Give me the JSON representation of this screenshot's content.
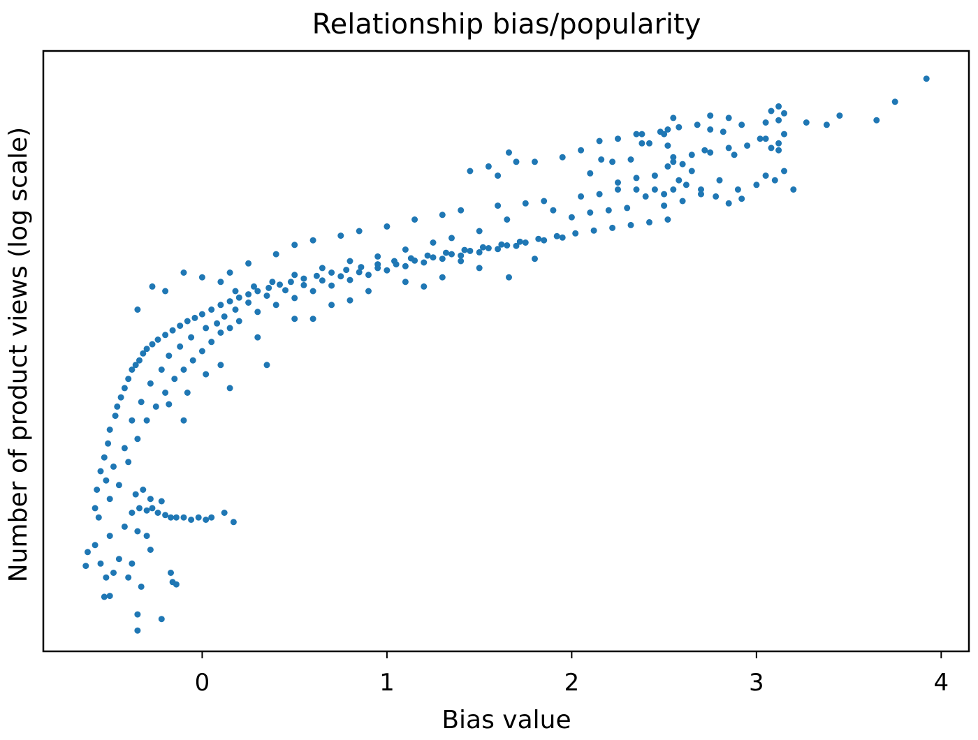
{
  "chart_data": {
    "type": "scatter",
    "title": "Relationship bias/popularity",
    "xlabel": "Bias value",
    "ylabel": "Number of product views (log scale)",
    "xlim": [
      -0.86,
      4.15
    ],
    "ylim": [
      0.0,
      1.0
    ],
    "y_scale": "log",
    "y_ticks_shown": false,
    "x_ticks": [
      {
        "value": 0,
        "label": "0"
      },
      {
        "value": 1,
        "label": "1"
      },
      {
        "value": 2,
        "label": "2"
      },
      {
        "value": 3,
        "label": "3"
      },
      {
        "value": 4,
        "label": "4"
      }
    ],
    "grid": false,
    "legend": "none",
    "marker_color": "#1f77b4",
    "series": [
      {
        "points": [
          [
            -0.62,
            0.215
          ],
          [
            -0.63,
            0.185
          ],
          [
            -0.58,
            0.23
          ],
          [
            -0.55,
            0.19
          ],
          [
            -0.52,
            0.16
          ],
          [
            -0.5,
            0.12
          ],
          [
            -0.53,
            0.118
          ],
          [
            -0.35,
            0.08
          ],
          [
            -0.35,
            0.045
          ],
          [
            -0.22,
            0.07
          ],
          [
            -0.16,
            0.15
          ],
          [
            -0.17,
            0.17
          ],
          [
            -0.14,
            0.145
          ],
          [
            -0.33,
            0.14
          ],
          [
            -0.4,
            0.16
          ],
          [
            -0.48,
            0.17
          ],
          [
            -0.45,
            0.2
          ],
          [
            -0.38,
            0.19
          ],
          [
            -0.28,
            0.22
          ],
          [
            -0.3,
            0.25
          ],
          [
            -0.5,
            0.25
          ],
          [
            -0.56,
            0.29
          ],
          [
            -0.58,
            0.31
          ],
          [
            -0.42,
            0.27
          ],
          [
            -0.35,
            0.26
          ],
          [
            -0.57,
            0.35
          ],
          [
            -0.55,
            0.39
          ],
          [
            -0.53,
            0.42
          ],
          [
            -0.51,
            0.45
          ],
          [
            -0.5,
            0.48
          ],
          [
            -0.47,
            0.51
          ],
          [
            -0.46,
            0.53
          ],
          [
            -0.44,
            0.55
          ],
          [
            -0.42,
            0.57
          ],
          [
            -0.4,
            0.59
          ],
          [
            -0.38,
            0.61
          ],
          [
            -0.36,
            0.62
          ],
          [
            -0.34,
            0.63
          ],
          [
            -0.32,
            0.645
          ],
          [
            -0.3,
            0.655
          ],
          [
            -0.27,
            0.665
          ],
          [
            -0.24,
            0.675
          ],
          [
            -0.2,
            0.685
          ],
          [
            -0.16,
            0.695
          ],
          [
            -0.12,
            0.705
          ],
          [
            -0.08,
            0.715
          ],
          [
            -0.04,
            0.722
          ],
          [
            0.0,
            0.73
          ],
          [
            0.05,
            0.74
          ],
          [
            0.1,
            0.75
          ],
          [
            0.15,
            0.758
          ],
          [
            0.2,
            0.766
          ],
          [
            0.25,
            0.773
          ],
          [
            0.3,
            0.78
          ],
          [
            0.36,
            0.787
          ],
          [
            0.42,
            0.794
          ],
          [
            0.48,
            0.8
          ],
          [
            0.55,
            0.807
          ],
          [
            0.62,
            0.813
          ],
          [
            0.7,
            0.82
          ],
          [
            0.78,
            0.826
          ],
          [
            0.86,
            0.832
          ],
          [
            0.95,
            0.838
          ],
          [
            1.04,
            0.845
          ],
          [
            1.13,
            0.851
          ],
          [
            1.22,
            0.857
          ],
          [
            1.32,
            0.863
          ],
          [
            1.42,
            0.869
          ],
          [
            1.52,
            0.875
          ],
          [
            1.62,
            0.881
          ],
          [
            1.72,
            0.887
          ],
          [
            1.82,
            0.893
          ],
          [
            1.92,
            0.899
          ],
          [
            2.02,
            0.905
          ],
          [
            2.12,
            0.911
          ],
          [
            2.22,
            0.917
          ],
          [
            2.32,
            0.923
          ],
          [
            2.42,
            0.929
          ],
          [
            2.52,
            0.935
          ],
          [
            -0.5,
            0.33
          ],
          [
            -0.45,
            0.36
          ],
          [
            -0.4,
            0.41
          ],
          [
            -0.35,
            0.46
          ],
          [
            -0.3,
            0.5
          ],
          [
            -0.25,
            0.53
          ],
          [
            -0.2,
            0.56
          ],
          [
            -0.15,
            0.59
          ],
          [
            -0.1,
            0.61
          ],
          [
            -0.05,
            0.63
          ],
          [
            0.0,
            0.65
          ],
          [
            0.05,
            0.67
          ],
          [
            0.1,
            0.69
          ],
          [
            0.15,
            0.7
          ],
          [
            0.2,
            0.715
          ],
          [
            0.3,
            0.735
          ],
          [
            0.4,
            0.75
          ],
          [
            0.5,
            0.765
          ],
          [
            0.6,
            0.78
          ],
          [
            0.7,
            0.792
          ],
          [
            0.8,
            0.804
          ],
          [
            0.9,
            0.815
          ],
          [
            1.0,
            0.825
          ],
          [
            1.1,
            0.834
          ],
          [
            1.2,
            0.842
          ],
          [
            1.3,
            0.85
          ],
          [
            1.4,
            0.857
          ],
          [
            1.5,
            0.864
          ],
          [
            1.6,
            0.871
          ],
          [
            1.7,
            0.878
          ],
          [
            -0.48,
            0.4
          ],
          [
            -0.52,
            0.37
          ],
          [
            -0.42,
            0.44
          ],
          [
            -0.38,
            0.5
          ],
          [
            -0.33,
            0.54
          ],
          [
            -0.28,
            0.58
          ],
          [
            -0.22,
            0.61
          ],
          [
            -0.18,
            0.64
          ],
          [
            -0.12,
            0.66
          ],
          [
            -0.06,
            0.68
          ],
          [
            0.02,
            0.7
          ],
          [
            0.08,
            0.71
          ],
          [
            0.12,
            0.725
          ],
          [
            0.18,
            0.74
          ],
          [
            0.25,
            0.755
          ],
          [
            0.35,
            0.77
          ],
          [
            0.45,
            0.782
          ],
          [
            0.55,
            0.793
          ],
          [
            0.65,
            0.803
          ],
          [
            0.75,
            0.812
          ],
          [
            0.85,
            0.821
          ],
          [
            0.95,
            0.83
          ],
          [
            1.05,
            0.838
          ],
          [
            1.15,
            0.846
          ],
          [
            1.25,
            0.853
          ],
          [
            1.35,
            0.86
          ],
          [
            1.45,
            0.867
          ],
          [
            1.55,
            0.873
          ],
          [
            1.65,
            0.879
          ],
          [
            1.75,
            0.885
          ],
          [
            1.85,
            0.89
          ],
          [
            1.95,
            0.896
          ],
          [
            -0.38,
            0.3
          ],
          [
            -0.34,
            0.31
          ],
          [
            -0.3,
            0.305
          ],
          [
            -0.27,
            0.31
          ],
          [
            -0.24,
            0.3
          ],
          [
            -0.2,
            0.295
          ],
          [
            -0.17,
            0.29
          ],
          [
            -0.14,
            0.29
          ],
          [
            -0.1,
            0.29
          ],
          [
            -0.06,
            0.285
          ],
          [
            -0.02,
            0.29
          ],
          [
            0.02,
            0.285
          ],
          [
            0.05,
            0.29
          ],
          [
            0.12,
            0.3
          ],
          [
            0.17,
            0.28
          ],
          [
            -0.28,
            0.33
          ],
          [
            -0.22,
            0.325
          ],
          [
            -0.32,
            0.35
          ],
          [
            -0.36,
            0.34
          ],
          [
            -0.08,
            0.56
          ],
          [
            0.02,
            0.6
          ],
          [
            0.1,
            0.62
          ],
          [
            -0.18,
            0.535
          ],
          [
            0.3,
            0.68
          ],
          [
            0.5,
            0.72
          ],
          [
            0.7,
            0.75
          ],
          [
            0.9,
            0.78
          ],
          [
            1.1,
            0.8
          ],
          [
            1.3,
            0.81
          ],
          [
            1.5,
            0.83
          ],
          [
            0.35,
            0.62
          ],
          [
            0.15,
            0.57
          ],
          [
            -0.1,
            0.5
          ],
          [
            0.6,
            0.72
          ],
          [
            0.8,
            0.76
          ],
          [
            1.2,
            0.79
          ],
          [
            1.8,
            0.85
          ],
          [
            1.4,
            0.845
          ],
          [
            1.66,
            0.81
          ],
          [
            -0.35,
            0.74
          ],
          [
            -0.27,
            0.79
          ],
          [
            -0.1,
            0.82
          ],
          [
            0.1,
            0.8
          ],
          [
            0.15,
            0.82
          ],
          [
            0.0,
            0.81
          ],
          [
            -0.2,
            0.78
          ],
          [
            0.25,
            0.84
          ],
          [
            0.4,
            0.86
          ],
          [
            0.5,
            0.88
          ],
          [
            0.6,
            0.89
          ],
          [
            0.75,
            0.9
          ],
          [
            0.85,
            0.91
          ],
          [
            1.0,
            0.92
          ],
          [
            1.15,
            0.935
          ],
          [
            1.3,
            0.945
          ],
          [
            1.4,
            0.955
          ],
          [
            1.6,
            0.965
          ],
          [
            1.75,
            0.97
          ],
          [
            1.85,
            0.975
          ],
          [
            2.05,
            0.985
          ],
          [
            2.15,
            0.99
          ],
          [
            2.25,
            1.0
          ],
          [
            2.35,
            1.0
          ],
          [
            2.4,
            0.985
          ],
          [
            2.45,
            1.0
          ],
          [
            2.5,
            0.99
          ],
          [
            2.55,
            1.0
          ],
          [
            2.58,
            1.02
          ],
          [
            2.62,
            1.01
          ],
          [
            2.7,
            0.99
          ],
          [
            2.78,
            0.985
          ],
          [
            2.85,
            0.97
          ],
          [
            2.92,
            0.98
          ],
          [
            2.0,
            0.94
          ],
          [
            2.1,
            0.95
          ],
          [
            2.2,
            0.955
          ],
          [
            2.3,
            0.96
          ],
          [
            2.5,
            0.965
          ],
          [
            2.6,
            0.975
          ],
          [
            2.7,
            1.0
          ],
          [
            2.8,
            1.02
          ],
          [
            2.9,
            1.0
          ],
          [
            3.0,
            1.01
          ],
          [
            3.05,
            1.03
          ],
          [
            3.1,
            1.02
          ],
          [
            3.15,
            1.04
          ],
          [
            3.2,
            1.0
          ],
          [
            2.65,
            1.04
          ],
          [
            2.52,
            1.05
          ],
          [
            2.45,
            1.03
          ],
          [
            2.35,
            1.025
          ],
          [
            2.25,
            1.015
          ],
          [
            2.1,
            1.035
          ],
          [
            1.9,
            0.955
          ],
          [
            1.65,
            0.935
          ],
          [
            1.5,
            0.91
          ],
          [
            1.35,
            0.895
          ],
          [
            1.25,
            0.885
          ],
          [
            1.1,
            0.87
          ],
          [
            0.95,
            0.855
          ],
          [
            0.8,
            0.845
          ],
          [
            0.65,
            0.83
          ],
          [
            0.5,
            0.815
          ],
          [
            0.38,
            0.8
          ],
          [
            0.28,
            0.79
          ],
          [
            0.18,
            0.78
          ],
          [
            2.55,
            1.06
          ],
          [
            2.6,
            1.055
          ],
          [
            2.55,
            1.07
          ],
          [
            2.65,
            1.075
          ],
          [
            2.75,
            1.08
          ],
          [
            2.85,
            1.09
          ],
          [
            2.95,
            1.095
          ],
          [
            3.02,
            1.11
          ],
          [
            3.05,
            1.11
          ],
          [
            3.15,
            1.12
          ],
          [
            3.12,
            1.1
          ],
          [
            3.08,
            1.09
          ],
          [
            3.12,
            1.085
          ],
          [
            2.72,
            1.085
          ],
          [
            2.88,
            1.075
          ],
          [
            2.52,
            1.095
          ],
          [
            2.42,
            1.1
          ],
          [
            2.32,
            1.065
          ],
          [
            2.22,
            1.06
          ],
          [
            2.16,
            1.065
          ],
          [
            1.66,
            1.08
          ],
          [
            1.7,
            1.06
          ],
          [
            1.55,
            1.05
          ],
          [
            1.45,
            1.04
          ],
          [
            1.6,
            1.03
          ],
          [
            1.8,
            1.06
          ],
          [
            1.95,
            1.07
          ],
          [
            2.05,
            1.085
          ],
          [
            2.15,
            1.105
          ],
          [
            2.25,
            1.11
          ],
          [
            2.38,
            1.12
          ],
          [
            2.48,
            1.125
          ],
          [
            2.58,
            1.135
          ],
          [
            2.68,
            1.14
          ],
          [
            2.75,
            1.13
          ],
          [
            2.82,
            1.125
          ],
          [
            2.92,
            1.14
          ],
          [
            3.05,
            1.145
          ],
          [
            3.12,
            1.15
          ],
          [
            3.27,
            1.145
          ],
          [
            3.38,
            1.14
          ],
          [
            3.45,
            1.16
          ],
          [
            3.65,
            1.15
          ],
          [
            3.75,
            1.19
          ],
          [
            3.92,
            1.24
          ],
          [
            3.15,
            1.165
          ],
          [
            3.12,
            1.18
          ],
          [
            3.08,
            1.17
          ],
          [
            2.85,
            1.155
          ],
          [
            2.75,
            1.16
          ],
          [
            2.55,
            1.155
          ],
          [
            2.52,
            1.13
          ],
          [
            2.5,
            1.12
          ],
          [
            2.35,
            1.12
          ],
          [
            2.38,
            1.1
          ]
        ]
      }
    ]
  }
}
